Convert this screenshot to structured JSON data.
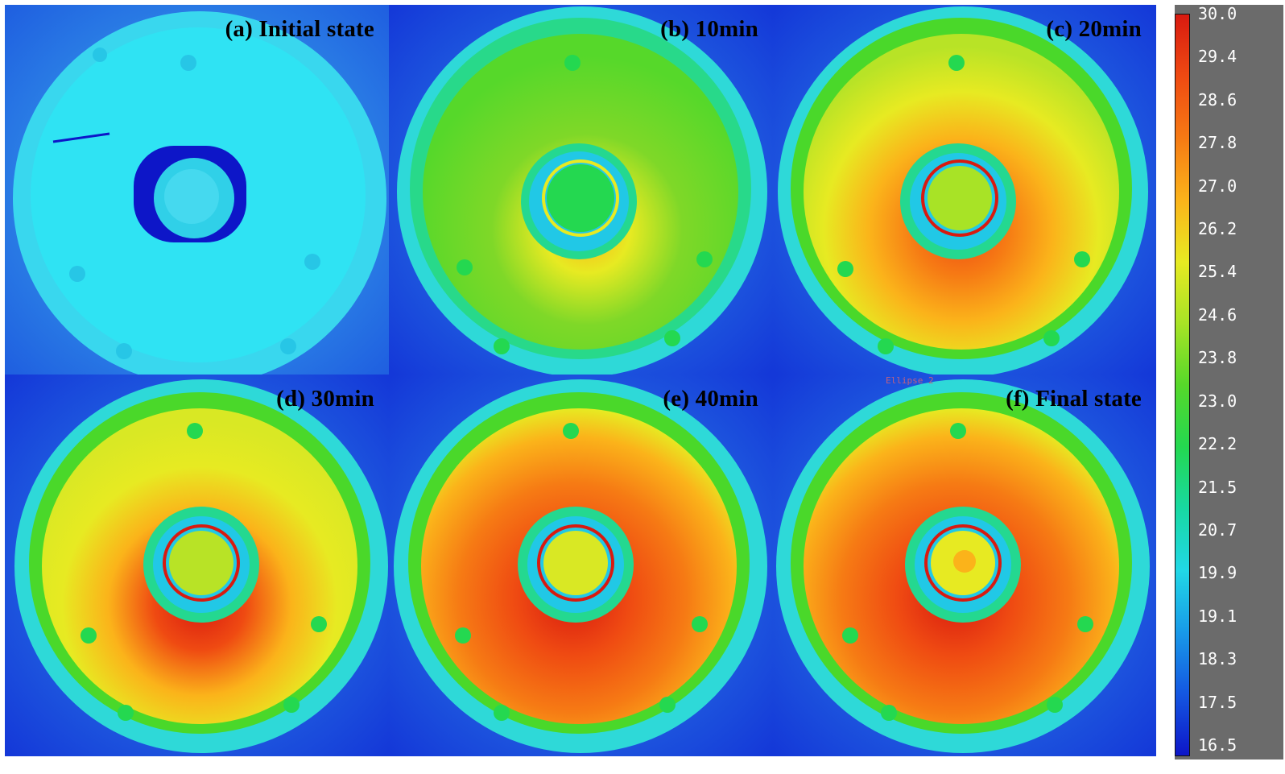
{
  "figure": {
    "panels": [
      {
        "label": "(a) Initial state",
        "state": "initial"
      },
      {
        "label": "(b) 10min",
        "state": "t10"
      },
      {
        "label": "(c)  20min",
        "state": "t20"
      },
      {
        "label": "(d) 30min",
        "state": "t30"
      },
      {
        "label": "(e)  40min",
        "state": "t40"
      },
      {
        "label": "(f) Final state",
        "state": "final"
      }
    ],
    "stray_text": "Ellipse 2",
    "colorbar": {
      "ticks": [
        "30.0",
        "29.4",
        "28.6",
        "27.8",
        "27.0",
        "26.2",
        "25.4",
        "24.6",
        "23.8",
        "23.0",
        "22.2",
        "21.5",
        "20.7",
        "19.9",
        "19.1",
        "18.3",
        "17.5",
        "16.5"
      ],
      "min": 16.5,
      "max": 30.0,
      "colors": [
        "#d81a10",
        "#ef4a12",
        "#f67a14",
        "#fbb31a",
        "#e7ea22",
        "#a8e326",
        "#56d82a",
        "#24d850",
        "#18d9a2",
        "#21d8e6",
        "#189ae8",
        "#1457e1",
        "#0d16c8"
      ]
    }
  }
}
